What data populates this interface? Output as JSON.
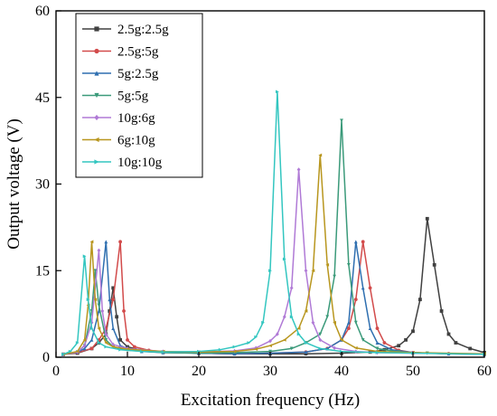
{
  "chart_data": {
    "type": "line",
    "title": "",
    "xlabel": "Excitation frequency (Hz)",
    "ylabel": "Output voltage (V)",
    "xlim": [
      0,
      60
    ],
    "ylim": [
      0,
      60
    ],
    "xticks": [
      0,
      10,
      20,
      30,
      40,
      50,
      60
    ],
    "yticks": [
      0,
      15,
      30,
      45,
      60
    ],
    "grid": false,
    "legend_position": "top-left",
    "series": [
      {
        "name": "2.5g:2.5g",
        "color": "#404040",
        "marker": "square",
        "points": [
          [
            1,
            0.5
          ],
          [
            3,
            0.7
          ],
          [
            5,
            1.5
          ],
          [
            6,
            2.5
          ],
          [
            7,
            4
          ],
          [
            7.5,
            8
          ],
          [
            8,
            12
          ],
          [
            8.5,
            7
          ],
          [
            9,
            3
          ],
          [
            10,
            1.8
          ],
          [
            12,
            1.2
          ],
          [
            15,
            0.9
          ],
          [
            20,
            0.7
          ],
          [
            25,
            0.6
          ],
          [
            30,
            0.6
          ],
          [
            35,
            0.6
          ],
          [
            40,
            0.7
          ],
          [
            44,
            0.9
          ],
          [
            46,
            1.3
          ],
          [
            48,
            2
          ],
          [
            49,
            3
          ],
          [
            50,
            4.5
          ],
          [
            51,
            10
          ],
          [
            52,
            24
          ],
          [
            53,
            16
          ],
          [
            54,
            8
          ],
          [
            55,
            4
          ],
          [
            56,
            2.5
          ],
          [
            58,
            1.5
          ],
          [
            60,
            0.8
          ]
        ]
      },
      {
        "name": "2.5g:5g",
        "color": "#d24b4b",
        "marker": "circle",
        "points": [
          [
            1,
            0.5
          ],
          [
            3,
            0.8
          ],
          [
            5,
            1.5
          ],
          [
            6,
            3
          ],
          [
            7,
            5
          ],
          [
            8,
            10
          ],
          [
            9,
            20
          ],
          [
            9.5,
            8
          ],
          [
            10,
            3
          ],
          [
            11,
            1.8
          ],
          [
            13,
            1.2
          ],
          [
            15,
            0.9
          ],
          [
            20,
            0.7
          ],
          [
            25,
            0.6
          ],
          [
            30,
            0.7
          ],
          [
            35,
            0.9
          ],
          [
            38,
            1.5
          ],
          [
            40,
            3
          ],
          [
            41,
            5
          ],
          [
            42,
            10
          ],
          [
            43,
            20
          ],
          [
            44,
            12
          ],
          [
            45,
            5
          ],
          [
            46,
            2.5
          ],
          [
            48,
            1.2
          ],
          [
            50,
            0.8
          ],
          [
            55,
            0.6
          ],
          [
            60,
            0.5
          ]
        ]
      },
      {
        "name": "5g:2.5g",
        "color": "#2f6fb0",
        "marker": "triangle-up",
        "points": [
          [
            1,
            0.5
          ],
          [
            3,
            0.9
          ],
          [
            4,
            1.5
          ],
          [
            5,
            3
          ],
          [
            6,
            8
          ],
          [
            7,
            20
          ],
          [
            7.5,
            10
          ],
          [
            8,
            5
          ],
          [
            9,
            2
          ],
          [
            10,
            1.5
          ],
          [
            12,
            1
          ],
          [
            15,
            0.8
          ],
          [
            20,
            0.7
          ],
          [
            25,
            0.6
          ],
          [
            30,
            0.7
          ],
          [
            35,
            0.9
          ],
          [
            38,
            1.5
          ],
          [
            40,
            3
          ],
          [
            41,
            6
          ],
          [
            42,
            20
          ],
          [
            43,
            12
          ],
          [
            44,
            5
          ],
          [
            45,
            2.5
          ],
          [
            47,
            1.3
          ],
          [
            50,
            0.8
          ],
          [
            55,
            0.6
          ],
          [
            60,
            0.5
          ]
        ]
      },
      {
        "name": "5g:5g",
        "color": "#3b9a7a",
        "marker": "triangle-down",
        "points": [
          [
            1,
            0.5
          ],
          [
            3,
            0.9
          ],
          [
            4,
            2
          ],
          [
            5,
            8
          ],
          [
            5.5,
            15
          ],
          [
            6,
            9
          ],
          [
            7,
            3
          ],
          [
            8,
            1.8
          ],
          [
            10,
            1.2
          ],
          [
            15,
            0.8
          ],
          [
            20,
            0.7
          ],
          [
            25,
            0.8
          ],
          [
            30,
            1
          ],
          [
            33,
            1.5
          ],
          [
            35,
            2.5
          ],
          [
            37,
            4
          ],
          [
            38,
            7
          ],
          [
            39,
            14
          ],
          [
            40,
            41
          ],
          [
            41,
            16
          ],
          [
            42,
            6
          ],
          [
            43,
            3
          ],
          [
            45,
            1.5
          ],
          [
            48,
            0.9
          ],
          [
            52,
            0.7
          ],
          [
            60,
            0.5
          ]
        ]
      },
      {
        "name": "10g:6g",
        "color": "#b07ad6",
        "marker": "diamond",
        "points": [
          [
            1,
            0.5
          ],
          [
            3,
            0.9
          ],
          [
            4,
            2
          ],
          [
            5,
            6
          ],
          [
            6,
            18.5
          ],
          [
            6.5,
            8
          ],
          [
            7,
            4
          ],
          [
            8,
            2.2
          ],
          [
            10,
            1.5
          ],
          [
            15,
            1
          ],
          [
            20,
            0.9
          ],
          [
            25,
            1.1
          ],
          [
            28,
            1.6
          ],
          [
            30,
            2.8
          ],
          [
            31,
            4
          ],
          [
            32,
            7
          ],
          [
            33,
            12
          ],
          [
            34,
            32.5
          ],
          [
            35,
            15
          ],
          [
            36,
            6
          ],
          [
            37,
            3
          ],
          [
            39,
            1.6
          ],
          [
            42,
            1
          ],
          [
            45,
            0.8
          ],
          [
            50,
            0.7
          ],
          [
            60,
            0.6
          ]
        ]
      },
      {
        "name": "6g:10g",
        "color": "#b8961e",
        "marker": "triangle-left",
        "points": [
          [
            1,
            0.5
          ],
          [
            3,
            1
          ],
          [
            4,
            3
          ],
          [
            4.5,
            9
          ],
          [
            5,
            20
          ],
          [
            5.5,
            10
          ],
          [
            6,
            5
          ],
          [
            7,
            2.5
          ],
          [
            8,
            1.8
          ],
          [
            10,
            1.4
          ],
          [
            15,
            1
          ],
          [
            20,
            0.9
          ],
          [
            25,
            1
          ],
          [
            28,
            1.4
          ],
          [
            30,
            2
          ],
          [
            32,
            3
          ],
          [
            34,
            5
          ],
          [
            35,
            8
          ],
          [
            36,
            15
          ],
          [
            37,
            35
          ],
          [
            38,
            16
          ],
          [
            39,
            6
          ],
          [
            40,
            3
          ],
          [
            42,
            1.6
          ],
          [
            45,
            1
          ],
          [
            50,
            0.8
          ],
          [
            60,
            0.6
          ]
        ]
      },
      {
        "name": "10g:10g",
        "color": "#33c6c0",
        "marker": "triangle-right",
        "points": [
          [
            1,
            0.5
          ],
          [
            2,
            1
          ],
          [
            3,
            2.5
          ],
          [
            4,
            17.5
          ],
          [
            4.5,
            10
          ],
          [
            5,
            5
          ],
          [
            6,
            2.5
          ],
          [
            7,
            1.8
          ],
          [
            9,
            1.3
          ],
          [
            12,
            1
          ],
          [
            15,
            0.9
          ],
          [
            20,
            1
          ],
          [
            23,
            1.3
          ],
          [
            25,
            1.8
          ],
          [
            27,
            2.5
          ],
          [
            28,
            3.5
          ],
          [
            29,
            6
          ],
          [
            30,
            15
          ],
          [
            31,
            46
          ],
          [
            32,
            17
          ],
          [
            33,
            7
          ],
          [
            34,
            4
          ],
          [
            35,
            2.5
          ],
          [
            37,
            1.5
          ],
          [
            40,
            1
          ],
          [
            45,
            0.8
          ],
          [
            50,
            0.7
          ],
          [
            60,
            0.5
          ]
        ]
      }
    ]
  }
}
